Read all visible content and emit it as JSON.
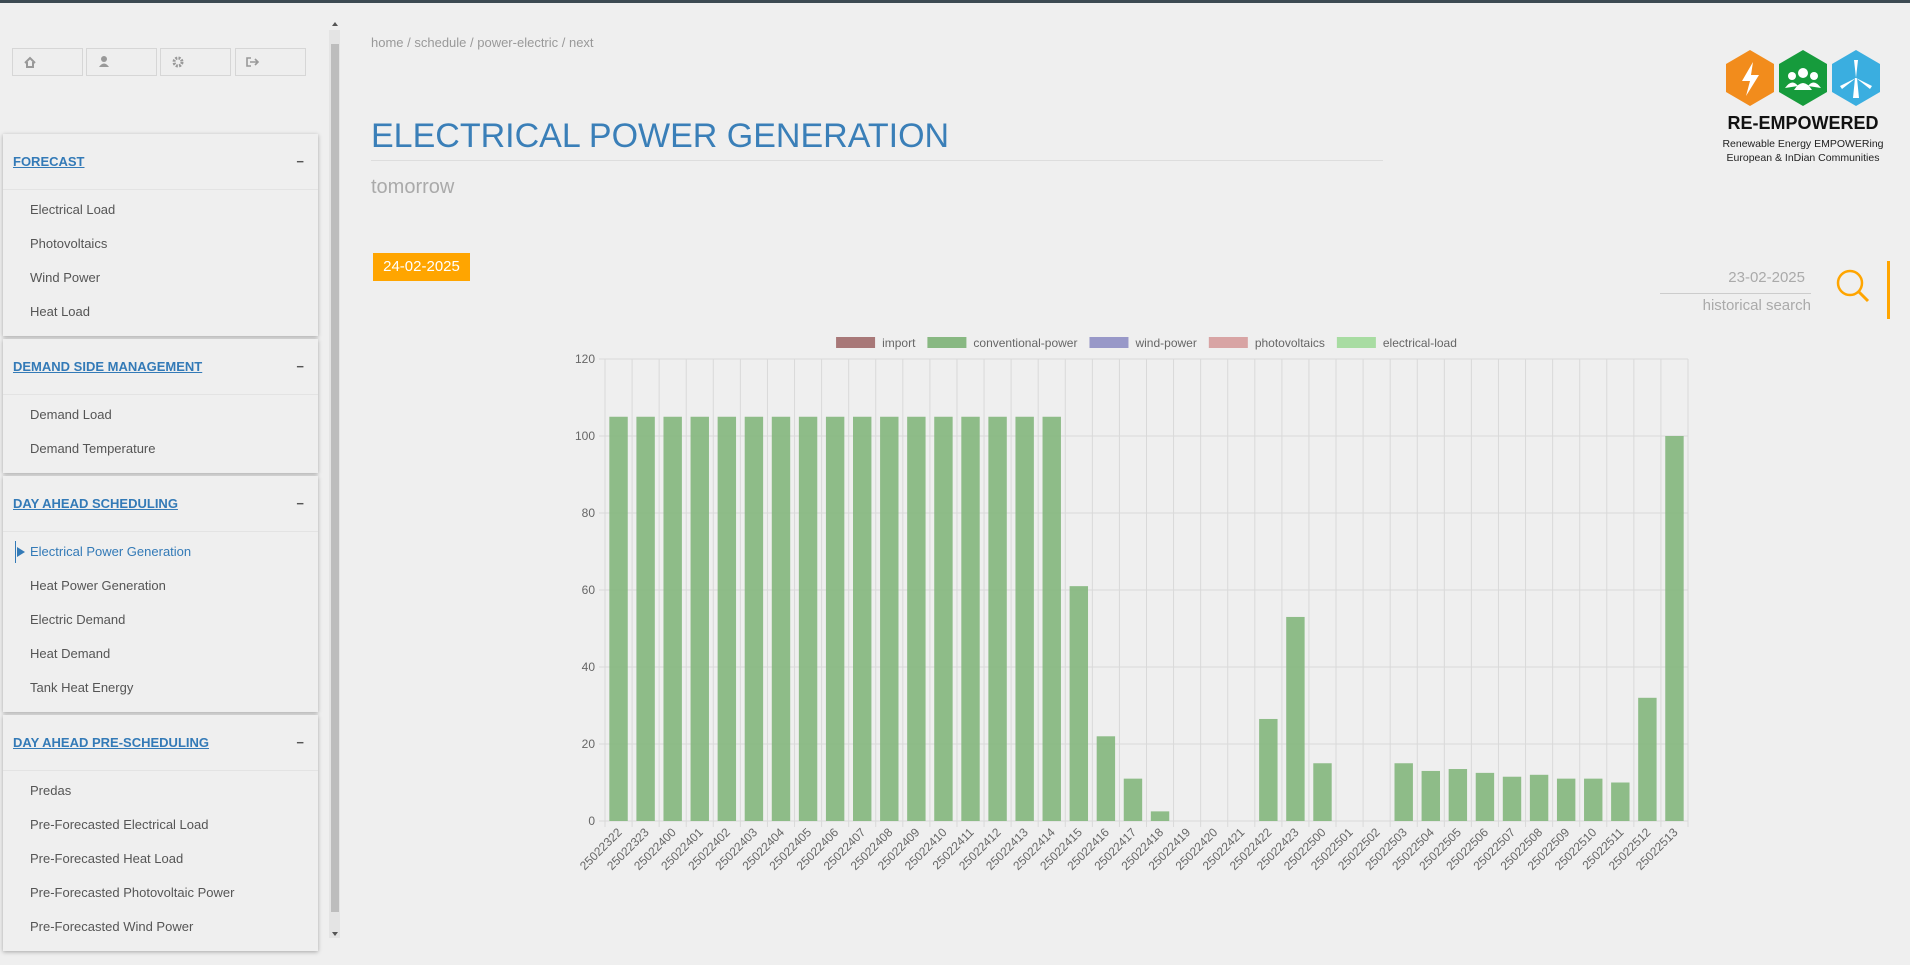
{
  "breadcrumb": "home / schedule / power-electric / next",
  "title": "ELECTRICAL POWER GENERATION",
  "subtitle": "tomorrow",
  "date_badge": "24-02-2025",
  "search": {
    "date": "23-02-2025",
    "label": "historical search"
  },
  "logo": {
    "name": "RE-EMPOWERED",
    "tagline": [
      "Renewable Energy EMPOWERing",
      "European & InDian Communities"
    ]
  },
  "sidebar": {
    "sections": [
      {
        "title": "FORECAST",
        "items": [
          "Electrical Load",
          "Photovoltaics",
          "Wind Power",
          "Heat Load"
        ]
      },
      {
        "title": "DEMAND SIDE MANAGEMENT",
        "items": [
          "Demand Load",
          "Demand Temperature"
        ]
      },
      {
        "title": "DAY AHEAD SCHEDULING",
        "items": [
          "Electrical Power Generation",
          "Heat Power Generation",
          "Electric Demand",
          "Heat Demand",
          "Tank Heat Energy"
        ],
        "active_item": 0
      },
      {
        "title": "DAY AHEAD PRE-SCHEDULING",
        "items": [
          "Predas",
          "Pre-Forecasted Electrical Load",
          "Pre-Forecasted Heat Load",
          "Pre-Forecasted Photovoltaic Power",
          "Pre-Forecasted Wind Power"
        ]
      }
    ]
  },
  "chart_data": {
    "type": "bar",
    "categories": [
      "25022322",
      "25022323",
      "25022400",
      "25022401",
      "25022402",
      "25022403",
      "25022404",
      "25022405",
      "25022406",
      "25022407",
      "25022408",
      "25022409",
      "25022410",
      "25022411",
      "25022412",
      "25022413",
      "25022414",
      "25022415",
      "25022416",
      "25022417",
      "25022418",
      "25022419",
      "25022420",
      "25022421",
      "25022422",
      "25022423",
      "25022500",
      "25022501",
      "25022502",
      "25022503",
      "25022504",
      "25022505",
      "25022506",
      "25022507",
      "25022508",
      "25022509",
      "25022510",
      "25022511",
      "25022512",
      "25022513"
    ],
    "series": [
      {
        "name": "import",
        "color": "#a87878"
      },
      {
        "name": "conventional-power",
        "color": "#88b882",
        "values": [
          105,
          105,
          105,
          105,
          105,
          105,
          105,
          105,
          105,
          105,
          105,
          105,
          105,
          105,
          105,
          105,
          105,
          61,
          22,
          11,
          2.5,
          0,
          0,
          0,
          26.5,
          53,
          15,
          0,
          0,
          15,
          13,
          13.5,
          12.5,
          11.5,
          12,
          11,
          11,
          10,
          32,
          100
        ]
      },
      {
        "name": "wind-power",
        "color": "#9898c8"
      },
      {
        "name": "photovoltaics",
        "color": "#d8a4a4"
      },
      {
        "name": "electrical-load",
        "color": "#a8dca2"
      }
    ],
    "ylim": [
      0,
      120
    ],
    "yticks": [
      0,
      20,
      40,
      60,
      80,
      100,
      120
    ],
    "grid": true,
    "legend": "top"
  }
}
